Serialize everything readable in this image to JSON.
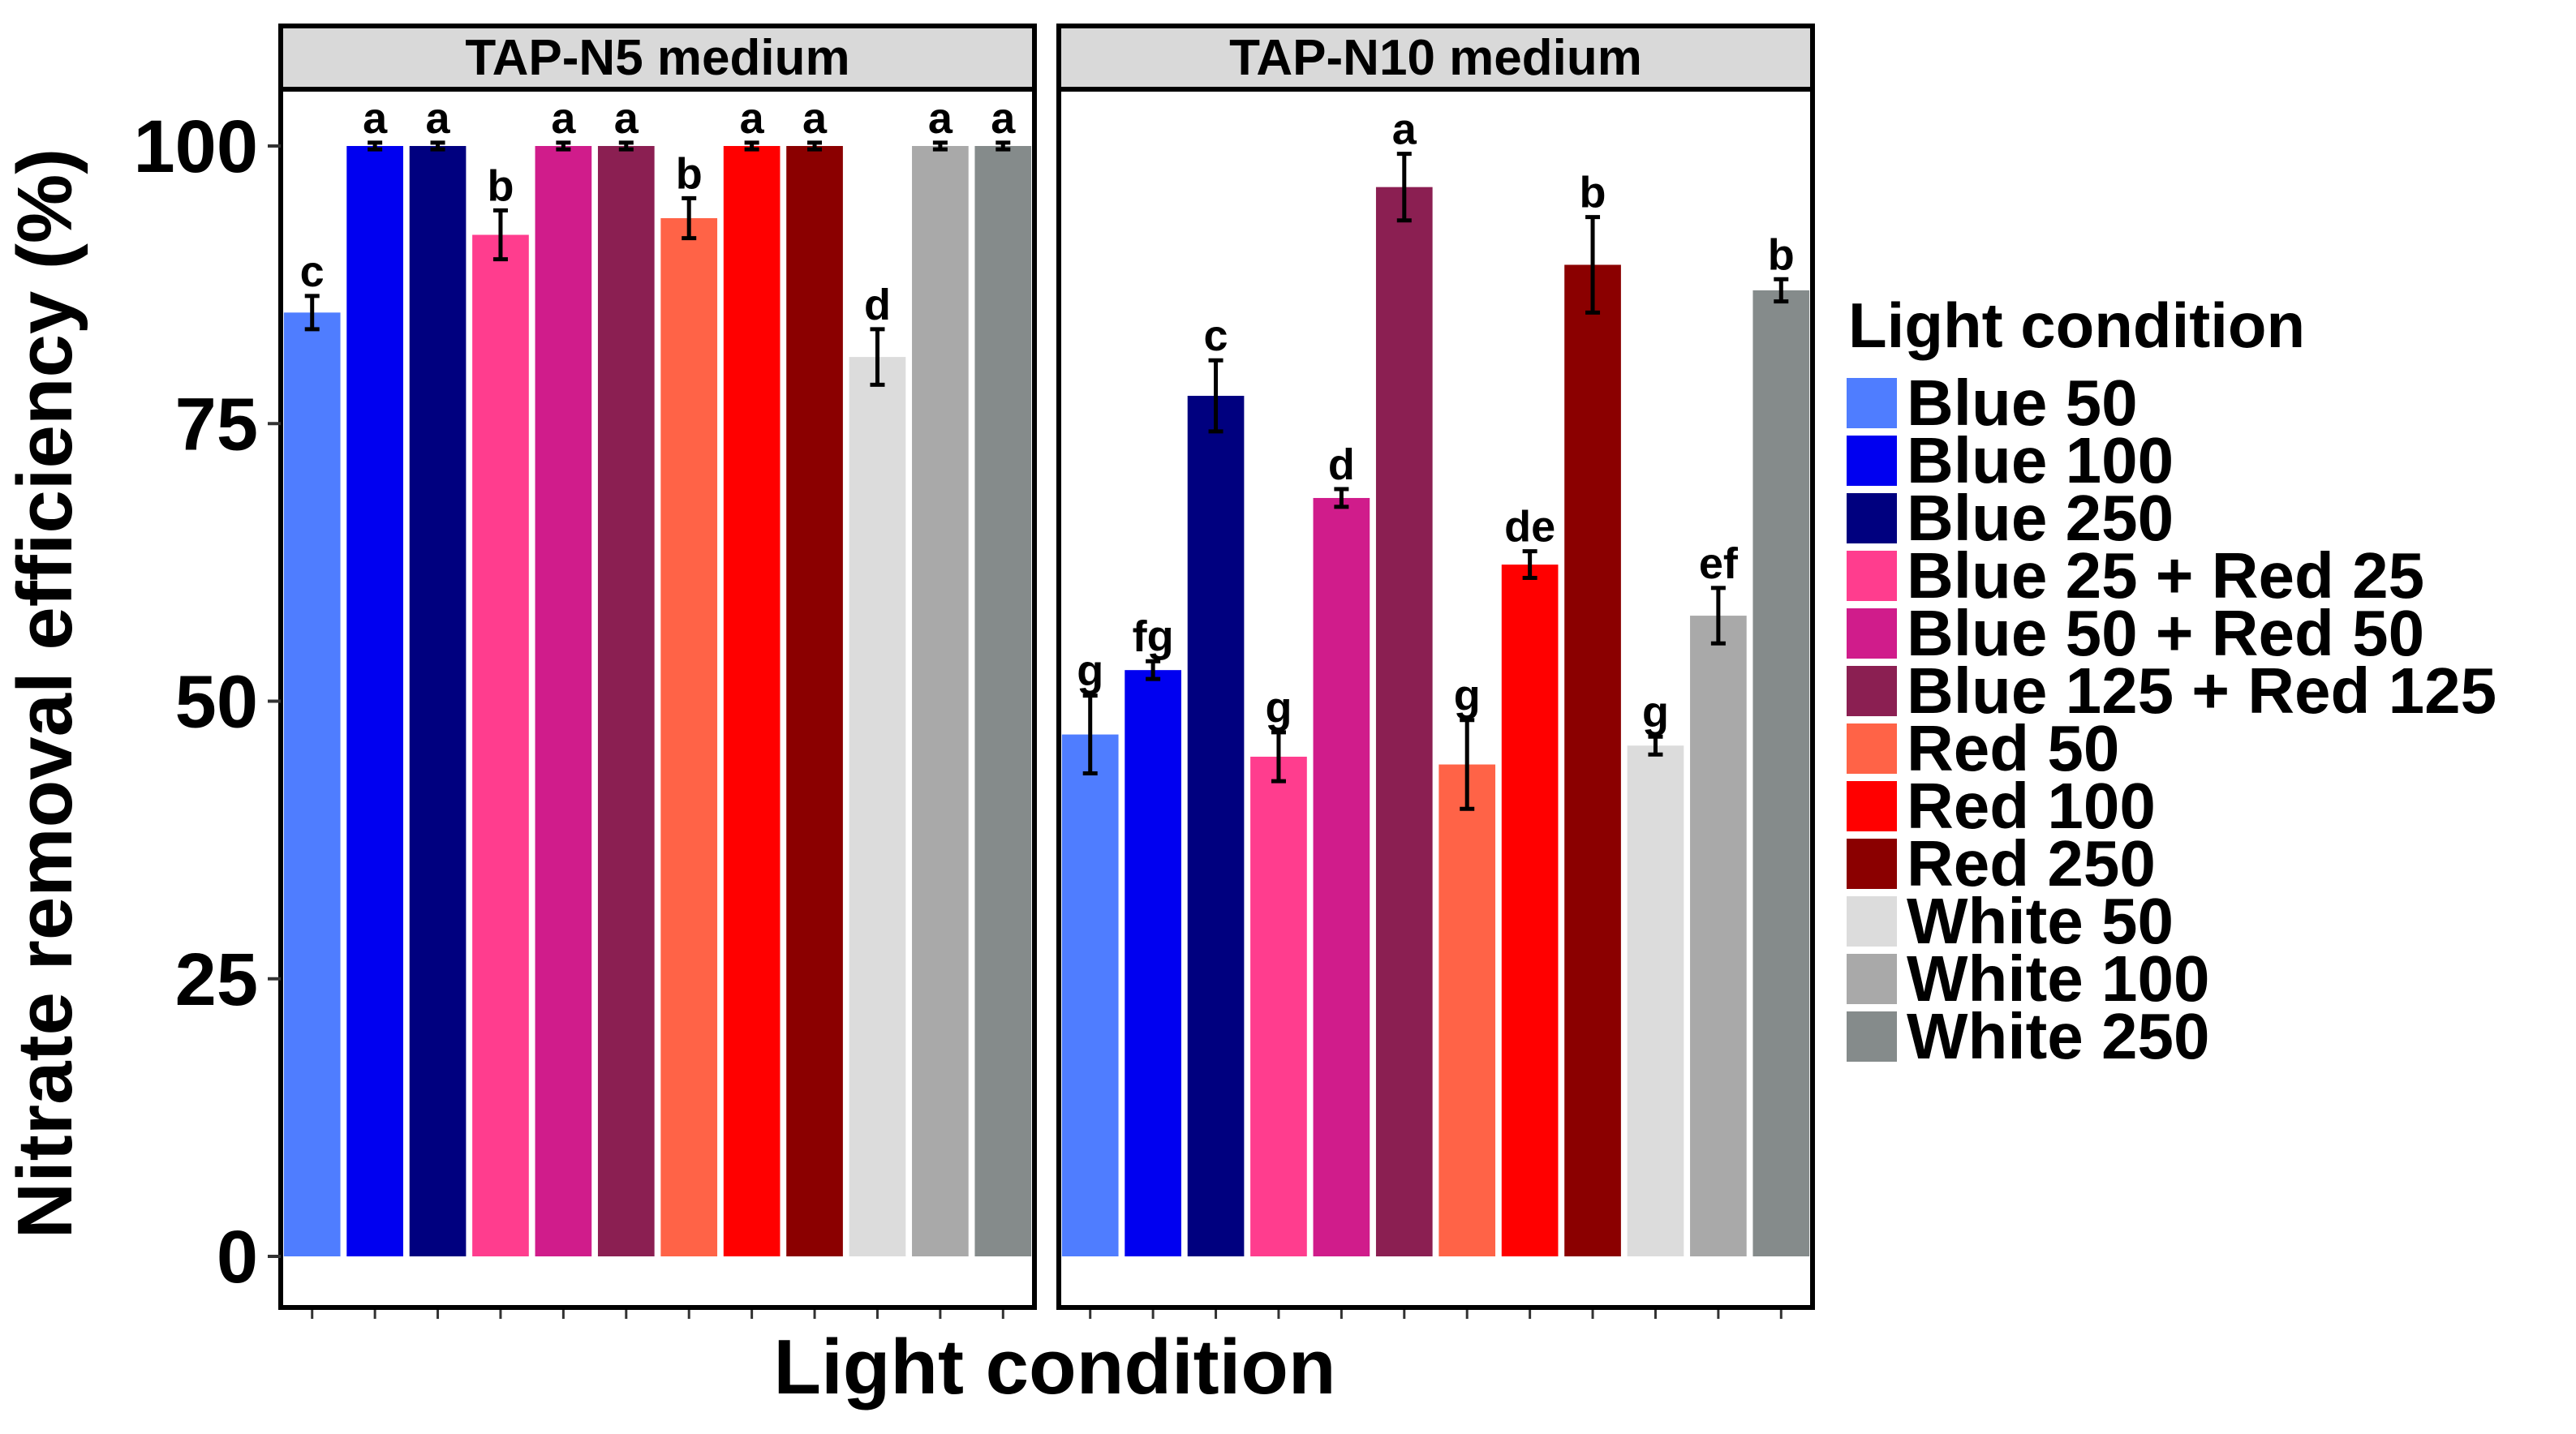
{
  "chart_data": {
    "type": "bar",
    "ylabel": "Nitrate removal efficiency (%)",
    "xlabel": "Light condition",
    "ylim": [
      0,
      100
    ],
    "yticks": [
      0,
      25,
      50,
      75,
      100
    ],
    "legend": {
      "title": "Light condition",
      "position": "right"
    },
    "categories": [
      "Blue 50",
      "Blue 100",
      "Blue 250",
      "Blue 25 + Red 25",
      "Blue 50 + Red 50",
      "Blue 125 + Red 125",
      "Red 50",
      "Red 100",
      "Red 250",
      "White 50",
      "White 100",
      "White 250"
    ],
    "colors": [
      "#4f7dff",
      "#0000f0",
      "#00007f",
      "#ff3d8e",
      "#d01c8b",
      "#8b1f52",
      "#ff6347",
      "#ff0000",
      "#8b0000",
      "#dcdcdc",
      "#a9a9a9",
      "#858b8b"
    ],
    "panels": [
      {
        "title": "TAP-N5 medium",
        "values": [
          85,
          100,
          100,
          92,
          100,
          100,
          93.5,
          100,
          100,
          81,
          100,
          100
        ],
        "errors": [
          1.5,
          0.3,
          0.3,
          2.2,
          0.3,
          0.3,
          1.8,
          0.3,
          0.3,
          2.5,
          0.3,
          0.3
        ],
        "labels": [
          "c",
          "a",
          "a",
          "b",
          "a",
          "a",
          "b",
          "a",
          "a",
          "d",
          "a",
          "a"
        ]
      },
      {
        "title": "TAP-N10 medium",
        "values": [
          47,
          52.8,
          77.5,
          45,
          68.3,
          96.3,
          44.3,
          62.3,
          89.3,
          46,
          57.7,
          87
        ],
        "errors": [
          3.5,
          0.8,
          3.2,
          2.2,
          0.8,
          3.0,
          4.0,
          1.2,
          4.3,
          0.8,
          2.5,
          1.0
        ],
        "labels": [
          "g",
          "fg",
          "c",
          "g",
          "d",
          "a",
          "g",
          "de",
          "b",
          "g",
          "ef",
          "b"
        ]
      }
    ]
  }
}
